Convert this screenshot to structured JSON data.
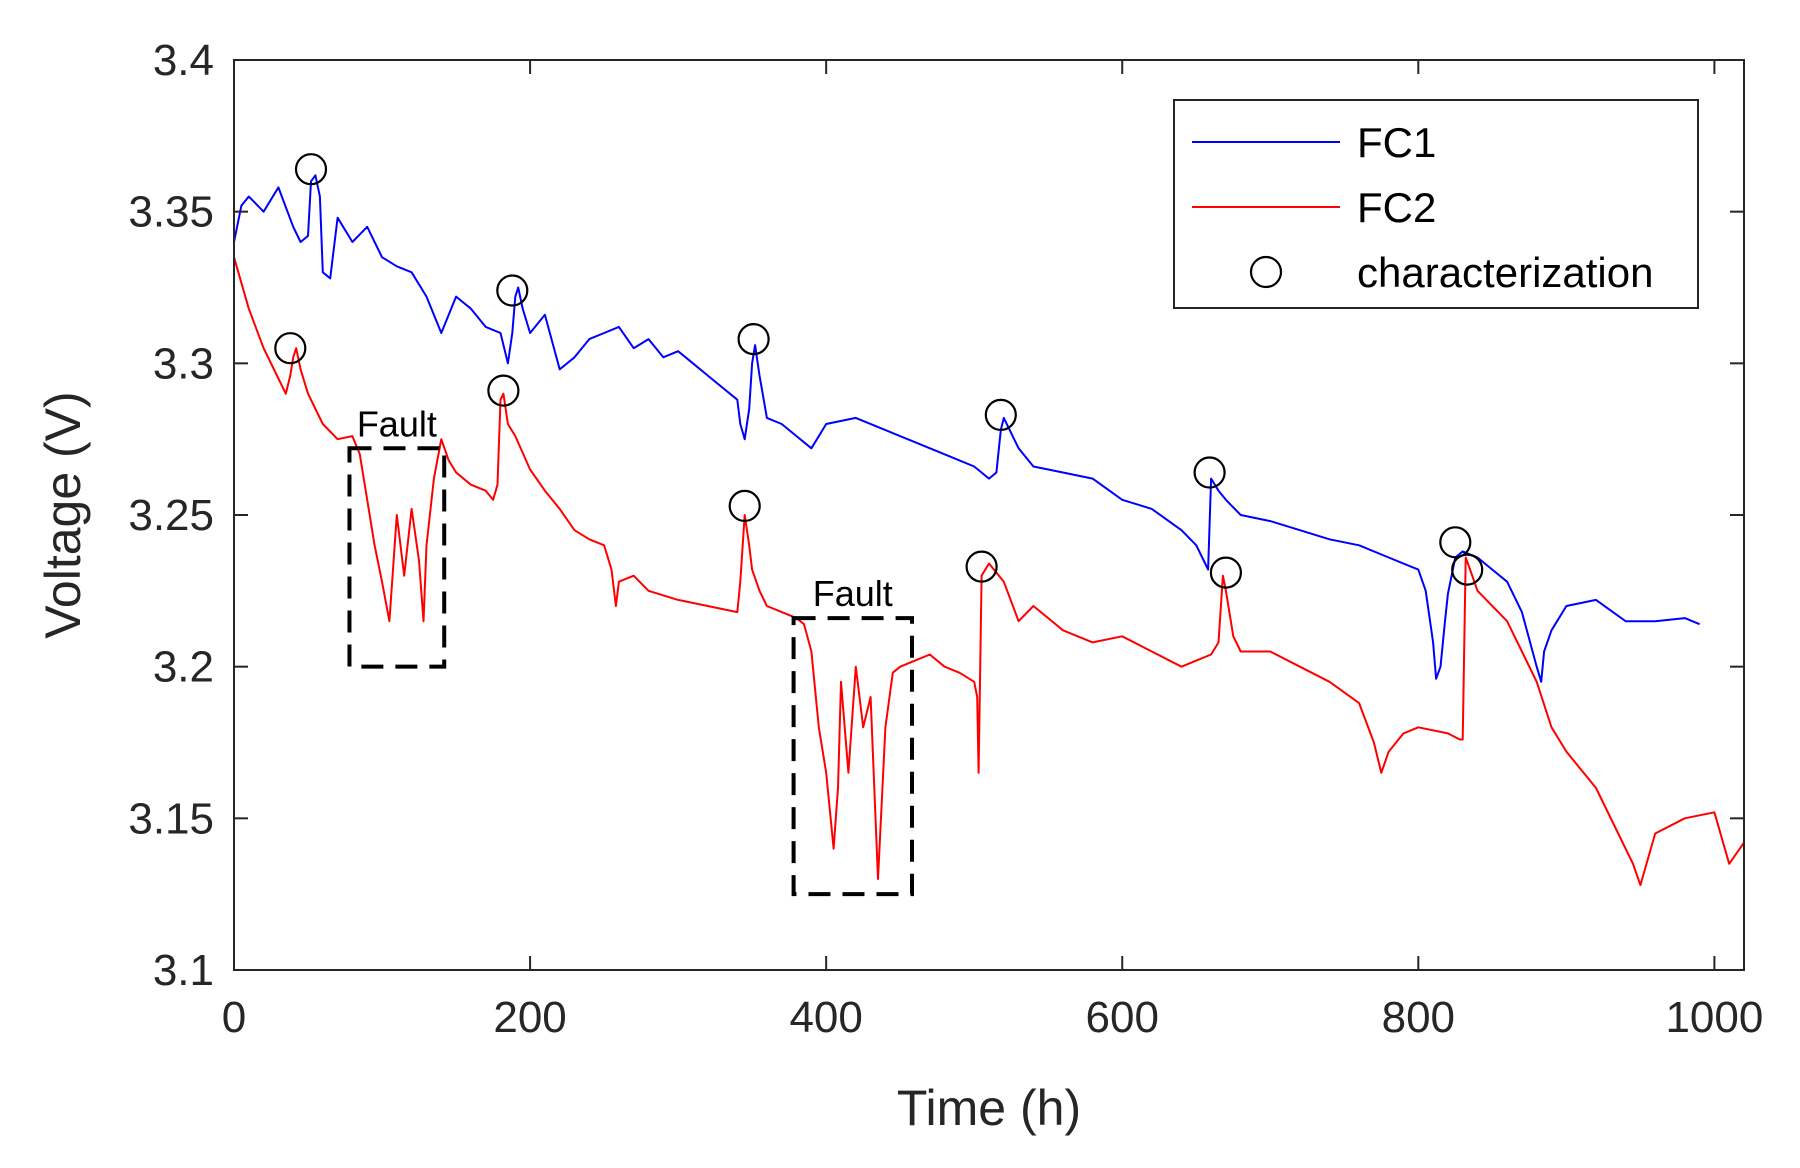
{
  "chart_data": {
    "type": "line",
    "title": "",
    "xlabel": "Time (h)",
    "ylabel": "Voltage (V)",
    "xlim": [
      0,
      1020
    ],
    "ylim": [
      3.1,
      3.4
    ],
    "xticks": [
      0,
      200,
      400,
      600,
      800,
      1000
    ],
    "xtick_labels": [
      "0",
      "200",
      "400",
      "600",
      "800",
      "1000"
    ],
    "yticks": [
      3.1,
      3.15,
      3.2,
      3.25,
      3.3,
      3.35,
      3.4
    ],
    "ytick_labels": [
      "3.1",
      "3.15",
      "3.2",
      "3.25",
      "3.3",
      "3.35",
      "3.4"
    ],
    "grid": false,
    "legend_position": "top-right",
    "series": [
      {
        "name": "FC1",
        "color": "#0000ff",
        "x": [
          0,
          5,
          10,
          20,
          30,
          40,
          45,
          50,
          52,
          55,
          58,
          60,
          65,
          70,
          80,
          90,
          100,
          110,
          120,
          130,
          140,
          150,
          160,
          170,
          180,
          185,
          188,
          190,
          192,
          195,
          200,
          210,
          220,
          230,
          240,
          250,
          260,
          270,
          280,
          290,
          300,
          310,
          320,
          330,
          340,
          342,
          345,
          348,
          350,
          352,
          355,
          360,
          370,
          380,
          390,
          400,
          420,
          440,
          460,
          480,
          500,
          510,
          515,
          518,
          520,
          530,
          540,
          560,
          580,
          600,
          620,
          640,
          650,
          655,
          658,
          660,
          665,
          670,
          680,
          700,
          720,
          740,
          760,
          780,
          800,
          805,
          810,
          812,
          815,
          818,
          820,
          825,
          830,
          840,
          850,
          860,
          870,
          880,
          883,
          885,
          890,
          900,
          920,
          940,
          960,
          980,
          990
        ],
        "y": [
          3.34,
          3.352,
          3.355,
          3.35,
          3.358,
          3.345,
          3.34,
          3.342,
          3.36,
          3.362,
          3.355,
          3.33,
          3.328,
          3.348,
          3.34,
          3.345,
          3.335,
          3.332,
          3.33,
          3.322,
          3.31,
          3.322,
          3.318,
          3.312,
          3.31,
          3.3,
          3.31,
          3.322,
          3.325,
          3.318,
          3.31,
          3.316,
          3.298,
          3.302,
          3.308,
          3.31,
          3.312,
          3.305,
          3.308,
          3.302,
          3.304,
          3.3,
          3.296,
          3.292,
          3.288,
          3.28,
          3.275,
          3.285,
          3.3,
          3.306,
          3.296,
          3.282,
          3.28,
          3.276,
          3.272,
          3.28,
          3.282,
          3.278,
          3.274,
          3.27,
          3.266,
          3.262,
          3.264,
          3.278,
          3.282,
          3.272,
          3.266,
          3.264,
          3.262,
          3.255,
          3.252,
          3.245,
          3.24,
          3.235,
          3.232,
          3.262,
          3.258,
          3.255,
          3.25,
          3.248,
          3.245,
          3.242,
          3.24,
          3.236,
          3.232,
          3.225,
          3.208,
          3.196,
          3.2,
          3.215,
          3.224,
          3.236,
          3.238,
          3.236,
          3.232,
          3.228,
          3.218,
          3.2,
          3.195,
          3.205,
          3.212,
          3.22,
          3.222,
          3.215,
          3.215,
          3.216,
          3.214
        ]
      },
      {
        "name": "FC2",
        "color": "#ff0000",
        "x": [
          0,
          10,
          20,
          30,
          35,
          38,
          40,
          42,
          45,
          50,
          60,
          70,
          80,
          85,
          90,
          95,
          100,
          105,
          110,
          115,
          120,
          125,
          128,
          130,
          135,
          140,
          145,
          150,
          160,
          170,
          175,
          178,
          180,
          182,
          185,
          190,
          200,
          210,
          220,
          230,
          240,
          250,
          255,
          258,
          260,
          270,
          280,
          300,
          320,
          340,
          342,
          345,
          348,
          350,
          355,
          360,
          370,
          380,
          385,
          390,
          395,
          400,
          405,
          408,
          410,
          415,
          420,
          425,
          430,
          435,
          440,
          445,
          450,
          460,
          470,
          480,
          490,
          500,
          502,
          503,
          505,
          510,
          520,
          530,
          540,
          560,
          580,
          600,
          620,
          640,
          650,
          660,
          665,
          668,
          670,
          675,
          680,
          700,
          720,
          740,
          760,
          770,
          775,
          780,
          790,
          800,
          820,
          828,
          830,
          832,
          835,
          840,
          860,
          870,
          880,
          890,
          900,
          920,
          935,
          945,
          950,
          960,
          980,
          1000,
          1010,
          1020
        ],
        "y": [
          3.335,
          3.318,
          3.305,
          3.295,
          3.29,
          3.296,
          3.302,
          3.305,
          3.298,
          3.29,
          3.28,
          3.275,
          3.276,
          3.27,
          3.255,
          3.24,
          3.228,
          3.215,
          3.25,
          3.23,
          3.252,
          3.235,
          3.215,
          3.24,
          3.262,
          3.275,
          3.268,
          3.264,
          3.26,
          3.258,
          3.255,
          3.26,
          3.288,
          3.29,
          3.28,
          3.276,
          3.265,
          3.258,
          3.252,
          3.245,
          3.242,
          3.24,
          3.232,
          3.22,
          3.228,
          3.23,
          3.225,
          3.222,
          3.22,
          3.218,
          3.228,
          3.25,
          3.24,
          3.232,
          3.225,
          3.22,
          3.218,
          3.216,
          3.214,
          3.205,
          3.18,
          3.165,
          3.14,
          3.16,
          3.195,
          3.165,
          3.2,
          3.18,
          3.19,
          3.13,
          3.18,
          3.198,
          3.2,
          3.202,
          3.204,
          3.2,
          3.198,
          3.195,
          3.19,
          3.165,
          3.23,
          3.234,
          3.228,
          3.215,
          3.22,
          3.212,
          3.208,
          3.21,
          3.205,
          3.2,
          3.202,
          3.204,
          3.208,
          3.23,
          3.225,
          3.21,
          3.205,
          3.205,
          3.2,
          3.195,
          3.188,
          3.175,
          3.165,
          3.172,
          3.178,
          3.18,
          3.178,
          3.176,
          3.176,
          3.236,
          3.232,
          3.225,
          3.215,
          3.205,
          3.195,
          3.18,
          3.172,
          3.16,
          3.145,
          3.135,
          3.128,
          3.145,
          3.15,
          3.152,
          3.135,
          3.142
        ]
      }
    ],
    "characterization_points": {
      "name": "characterization",
      "marker": "open-circle",
      "points": [
        [
          52,
          3.364
        ],
        [
          188,
          3.324
        ],
        [
          351,
          3.308
        ],
        [
          518,
          3.283
        ],
        [
          659,
          3.264
        ],
        [
          825,
          3.241
        ],
        [
          38,
          3.305
        ],
        [
          182,
          3.291
        ],
        [
          345,
          3.253
        ],
        [
          505,
          3.233
        ],
        [
          670,
          3.231
        ],
        [
          833,
          3.232
        ]
      ]
    },
    "annotations": [
      {
        "label": "Fault",
        "x_range": [
          78,
          142
        ],
        "y_range": [
          3.2,
          3.272
        ]
      },
      {
        "label": "Fault",
        "x_range": [
          378,
          458
        ],
        "y_range": [
          3.125,
          3.216
        ]
      }
    ]
  }
}
